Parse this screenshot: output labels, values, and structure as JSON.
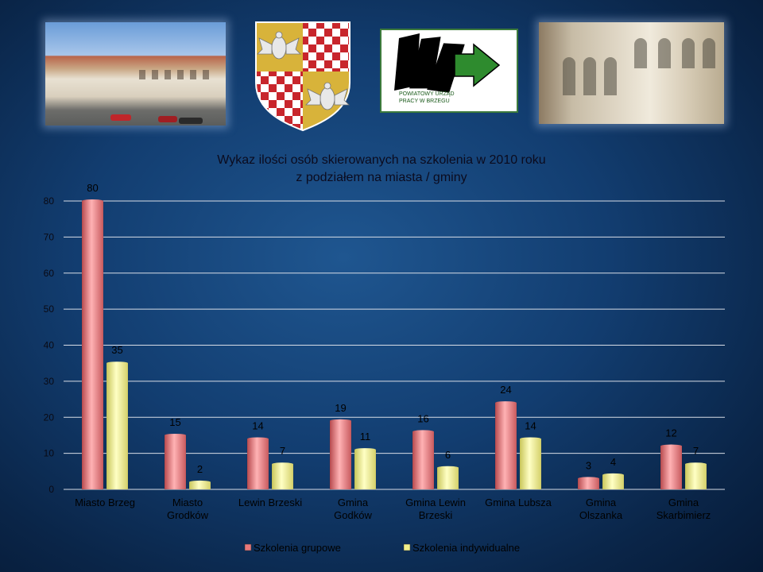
{
  "colors": {
    "series_grupowe": "#e8787a",
    "series_indywidualne": "#f2f08a",
    "gridline": "#d8dde6",
    "logo_green": "#2e8b2e"
  },
  "logo": {
    "caption": "POWIATOWY URZĄD PRACY W BRZEGU"
  },
  "chart_data": {
    "type": "bar",
    "title": "Wykaz ilości osób skierowanych na szkolenia w 2010 roku",
    "subtitle": "z podziałem na miasta / gminy",
    "categories": [
      "Miasto Brzeg",
      "Miasto Grodków",
      "Lewin Brzeski",
      "Gmina Godków",
      "Gmina Lewin Brzeski",
      "Gmina Lubsza",
      "Gmina Olszanka",
      "Gmina Skarbimierz"
    ],
    "category_lines": [
      [
        "Miasto Brzeg"
      ],
      [
        "Miasto",
        "Grodków"
      ],
      [
        "Lewin Brzeski"
      ],
      [
        "Gmina",
        "Godków"
      ],
      [
        "Gmina Lewin",
        "Brzeski"
      ],
      [
        "Gmina Lubsza"
      ],
      [
        "Gmina",
        "Olszanka"
      ],
      [
        "Gmina",
        "Skarbimierz"
      ]
    ],
    "series": [
      {
        "name": "Szkolenia grupowe",
        "values": [
          80,
          15,
          14,
          19,
          16,
          24,
          3,
          12
        ]
      },
      {
        "name": "Szkolenia indywidualne",
        "values": [
          35,
          2,
          7,
          11,
          6,
          14,
          4,
          7
        ]
      }
    ],
    "yticks": [
      0,
      10,
      20,
      30,
      40,
      50,
      60,
      70,
      80
    ],
    "ylim": [
      0,
      80
    ],
    "grid": true,
    "legend": "bottom",
    "xlabel": "",
    "ylabel": ""
  }
}
